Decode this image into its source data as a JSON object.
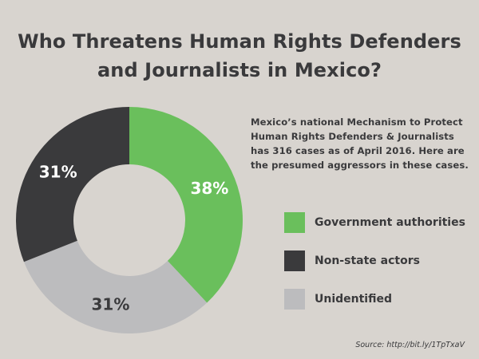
{
  "title_lines": [
    "Who Threatens Human Rights Defenders",
    "and Journalists in Mexico?"
  ],
  "description": "Mexico’s national Mechanism to Protect Human Rights Defenders & Journalists has 316 cases as of April 2016. Here are the presumed aggressors in these cases.",
  "source": "Source: http://bit.ly/1TpTxaV",
  "chart_data": {
    "type": "pie",
    "title": "Who Threatens Human Rights Defenders and Journalists in Mexico?",
    "categories": [
      "Government authorities",
      "Unidentified",
      "Non-state actors"
    ],
    "values": [
      38,
      31,
      31
    ],
    "labels": [
      "38%",
      "31%",
      "31%"
    ],
    "colors": [
      "#6abf5c",
      "#bcbcbe",
      "#3a3a3c"
    ],
    "label_colors": [
      "#ffffff",
      "#3a3a3c",
      "#ffffff"
    ],
    "donut": true,
    "start": "top, clockwise",
    "legend_position": "right"
  },
  "legend": [
    {
      "label": "Government authorities",
      "color": "#6abf5c"
    },
    {
      "label": "Non-state actors",
      "color": "#3a3a3c"
    },
    {
      "label": "Unidentified",
      "color": "#bcbcbe"
    }
  ]
}
